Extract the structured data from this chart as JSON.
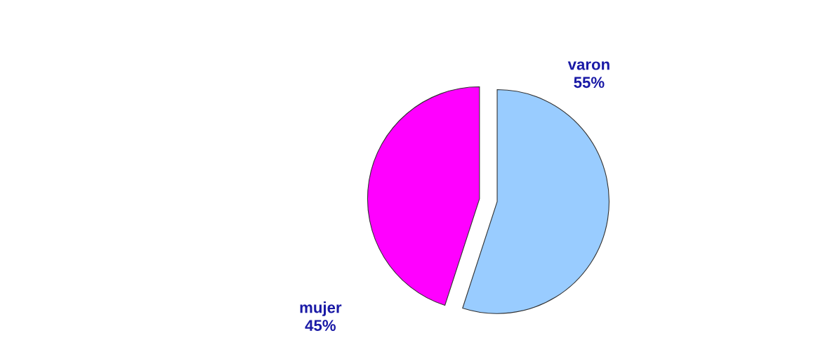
{
  "chart_data": {
    "type": "pie",
    "categories": [
      "varon",
      "mujer"
    ],
    "values": [
      55,
      45
    ],
    "colors": [
      "#99ccff",
      "#ff00ff"
    ],
    "value_labels": [
      "55%",
      "45%"
    ],
    "legend": false
  }
}
